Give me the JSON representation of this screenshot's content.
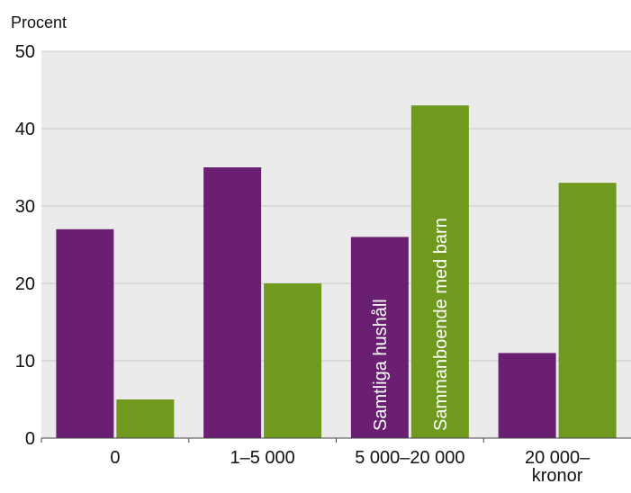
{
  "chart_data": {
    "type": "bar",
    "ylabel": "Procent",
    "ylim": [
      0,
      50
    ],
    "y_ticks": [
      0,
      10,
      20,
      30,
      40,
      50
    ],
    "categories": [
      "0",
      "1–5 000",
      "5 000–20 000",
      "20 000–\nkronor"
    ],
    "series": [
      {
        "name": "Samtliga hushåll",
        "values": [
          27,
          35,
          26,
          11
        ],
        "color": "#6b1f73"
      },
      {
        "name": "Sammanboende med barn",
        "values": [
          5,
          20,
          43,
          33
        ],
        "color": "#6f9a1e"
      }
    ],
    "series_label_category_index": 2,
    "grid": true,
    "background_color": "#ebebeb",
    "grid_color": "#c9c9c9"
  }
}
